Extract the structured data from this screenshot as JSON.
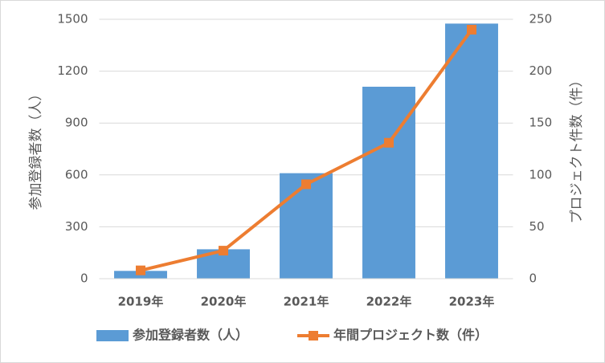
{
  "chart_data": {
    "type": "bar",
    "categories": [
      "2019年",
      "2020年",
      "2021年",
      "2022年",
      "2023年"
    ],
    "series": [
      {
        "name": "参加登録者数（人）",
        "type": "bar",
        "color": "#5b9bd5",
        "values": [
          45,
          170,
          610,
          1110,
          1475
        ]
      },
      {
        "name": "年間プロジェクト数（件）",
        "type": "line",
        "axis": "y2",
        "color": "#ed7d31",
        "values": [
          8,
          27,
          91,
          131,
          240
        ]
      }
    ],
    "y_label": "参加登録者数（人）",
    "y2_label": "プロジェクト件数（件）",
    "ylim": [
      0,
      1500
    ],
    "yticks": [
      0,
      300,
      600,
      900,
      1200,
      1500
    ],
    "y2lim": [
      0,
      250
    ],
    "y2ticks": [
      0,
      50,
      100,
      150,
      200,
      250
    ],
    "grid": true,
    "legend": "bottom"
  }
}
